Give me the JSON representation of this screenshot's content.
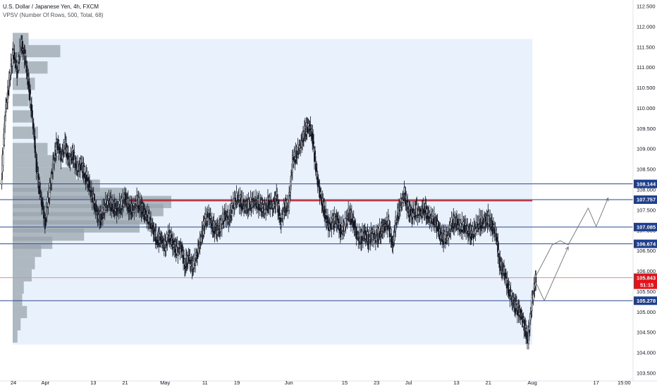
{
  "header": {
    "title": "U.S. Dollar / Japanese Yen, 4h, FXCM",
    "indicator": "VPSV (Number Of Rows, 500, Total, 68)"
  },
  "colors": {
    "candle": "#131722",
    "level_line": "#2a4a8c",
    "level_tag": "#1e3f8f",
    "red_line": "#d61f1f",
    "price_tag": "#e5121a",
    "volume_profile": "#9aa4ae",
    "value_area": "#e9f2fc",
    "projection": "#6b7280"
  },
  "chart_data": {
    "type": "candlestick",
    "symbol": "USDJPY",
    "timeframe": "4h",
    "ylim": [
      103.5,
      112.5
    ],
    "y_ticks": [
      "103.500",
      "104.000",
      "104.500",
      "105.000",
      "105.500",
      "106.000",
      "106.500",
      "107.000",
      "107.500",
      "108.000",
      "108.500",
      "109.000",
      "109.500",
      "110.000",
      "110.500",
      "111.000",
      "111.500",
      "112.000",
      "112.500"
    ],
    "x_ticks": [
      "24",
      "Apr",
      "13",
      "21",
      "May",
      "11",
      "19",
      "Jun",
      "15",
      "23",
      "Jul",
      "13",
      "21",
      "Aug",
      "17",
      "15:00"
    ],
    "x_domain": [
      "2020-03-21",
      "2020-08-25"
    ],
    "x_tick_dates": [
      "2020-03-24",
      "2020-04-01",
      "2020-04-13",
      "2020-04-21",
      "2020-05-01",
      "2020-05-11",
      "2020-05-19",
      "2020-06-01",
      "2020-06-15",
      "2020-06-23",
      "2020-07-01",
      "2020-07-13",
      "2020-07-21",
      "2020-08-01",
      "2020-08-17",
      "2020-08-24"
    ],
    "closes": [
      {
        "date": "2020-03-21",
        "close": 108.1
      },
      {
        "date": "2020-03-22",
        "close": 109.9
      },
      {
        "date": "2020-03-23",
        "close": 110.6
      },
      {
        "date": "2020-03-24",
        "close": 111.4
      },
      {
        "date": "2020-03-25",
        "close": 110.9
      },
      {
        "date": "2020-03-26",
        "close": 111.6
      },
      {
        "date": "2020-03-27",
        "close": 111.2
      },
      {
        "date": "2020-03-28",
        "close": 110.5
      },
      {
        "date": "2020-03-29",
        "close": 109.6
      },
      {
        "date": "2020-03-30",
        "close": 108.4
      },
      {
        "date": "2020-03-31",
        "close": 107.8
      },
      {
        "date": "2020-04-01",
        "close": 107.2
      },
      {
        "date": "2020-04-02",
        "close": 107.9
      },
      {
        "date": "2020-04-03",
        "close": 108.6
      },
      {
        "date": "2020-04-04",
        "close": 109.2
      },
      {
        "date": "2020-04-05",
        "close": 108.8
      },
      {
        "date": "2020-04-06",
        "close": 109.1
      },
      {
        "date": "2020-04-07",
        "close": 108.7
      },
      {
        "date": "2020-04-08",
        "close": 108.9
      },
      {
        "date": "2020-04-09",
        "close": 108.5
      },
      {
        "date": "2020-04-10",
        "close": 108.6
      },
      {
        "date": "2020-04-11",
        "close": 108.4
      },
      {
        "date": "2020-04-12",
        "close": 108.1
      },
      {
        "date": "2020-04-13",
        "close": 107.8
      },
      {
        "date": "2020-04-14",
        "close": 107.4
      },
      {
        "date": "2020-04-15",
        "close": 107.3
      },
      {
        "date": "2020-04-16",
        "close": 107.6
      },
      {
        "date": "2020-04-17",
        "close": 107.7
      },
      {
        "date": "2020-04-18",
        "close": 107.6
      },
      {
        "date": "2020-04-19",
        "close": 107.5
      },
      {
        "date": "2020-04-20",
        "close": 107.6
      },
      {
        "date": "2020-04-21",
        "close": 107.8
      },
      {
        "date": "2020-04-22",
        "close": 107.6
      },
      {
        "date": "2020-04-23",
        "close": 107.5
      },
      {
        "date": "2020-04-24",
        "close": 107.7
      },
      {
        "date": "2020-04-25",
        "close": 107.6
      },
      {
        "date": "2020-04-26",
        "close": 107.4
      },
      {
        "date": "2020-04-27",
        "close": 107.3
      },
      {
        "date": "2020-04-28",
        "close": 107.0
      },
      {
        "date": "2020-04-29",
        "close": 106.8
      },
      {
        "date": "2020-04-30",
        "close": 106.8
      },
      {
        "date": "2020-05-01",
        "close": 106.6
      },
      {
        "date": "2020-05-02",
        "close": 106.9
      },
      {
        "date": "2020-05-03",
        "close": 106.7
      },
      {
        "date": "2020-05-04",
        "close": 106.5
      },
      {
        "date": "2020-05-05",
        "close": 106.6
      },
      {
        "date": "2020-05-06",
        "close": 106.2
      },
      {
        "date": "2020-05-07",
        "close": 106.3
      },
      {
        "date": "2020-05-08",
        "close": 106.1
      },
      {
        "date": "2020-05-09",
        "close": 106.4
      },
      {
        "date": "2020-05-10",
        "close": 106.8
      },
      {
        "date": "2020-05-11",
        "close": 107.2
      },
      {
        "date": "2020-05-12",
        "close": 107.4
      },
      {
        "date": "2020-05-13",
        "close": 107.1
      },
      {
        "date": "2020-05-14",
        "close": 107.0
      },
      {
        "date": "2020-05-15",
        "close": 107.1
      },
      {
        "date": "2020-05-16",
        "close": 107.4
      },
      {
        "date": "2020-05-17",
        "close": 107.3
      },
      {
        "date": "2020-05-18",
        "close": 107.6
      },
      {
        "date": "2020-05-19",
        "close": 107.8
      },
      {
        "date": "2020-05-20",
        "close": 107.7
      },
      {
        "date": "2020-05-21",
        "close": 107.6
      },
      {
        "date": "2020-05-22",
        "close": 107.6
      },
      {
        "date": "2020-05-23",
        "close": 107.7
      },
      {
        "date": "2020-05-24",
        "close": 107.7
      },
      {
        "date": "2020-05-25",
        "close": 107.6
      },
      {
        "date": "2020-05-26",
        "close": 107.5
      },
      {
        "date": "2020-05-27",
        "close": 107.7
      },
      {
        "date": "2020-05-28",
        "close": 107.6
      },
      {
        "date": "2020-05-29",
        "close": 107.8
      },
      {
        "date": "2020-05-30",
        "close": 107.2
      },
      {
        "date": "2020-05-31",
        "close": 107.6
      },
      {
        "date": "2020-06-01",
        "close": 107.6
      },
      {
        "date": "2020-06-02",
        "close": 108.7
      },
      {
        "date": "2020-06-03",
        "close": 108.9
      },
      {
        "date": "2020-06-04",
        "close": 109.1
      },
      {
        "date": "2020-06-05",
        "close": 109.4
      },
      {
        "date": "2020-06-06",
        "close": 109.6
      },
      {
        "date": "2020-06-07",
        "close": 109.3
      },
      {
        "date": "2020-06-08",
        "close": 108.4
      },
      {
        "date": "2020-06-09",
        "close": 107.8
      },
      {
        "date": "2020-06-10",
        "close": 107.5
      },
      {
        "date": "2020-06-11",
        "close": 107.1
      },
      {
        "date": "2020-06-12",
        "close": 107.2
      },
      {
        "date": "2020-06-13",
        "close": 107.3
      },
      {
        "date": "2020-06-14",
        "close": 107.0
      },
      {
        "date": "2020-06-15",
        "close": 107.1
      },
      {
        "date": "2020-06-16",
        "close": 107.4
      },
      {
        "date": "2020-06-17",
        "close": 107.3
      },
      {
        "date": "2020-06-18",
        "close": 106.9
      },
      {
        "date": "2020-06-19",
        "close": 106.8
      },
      {
        "date": "2020-06-20",
        "close": 106.9
      },
      {
        "date": "2020-06-21",
        "close": 106.8
      },
      {
        "date": "2020-06-22",
        "close": 106.9
      },
      {
        "date": "2020-06-23",
        "close": 106.8
      },
      {
        "date": "2020-06-24",
        "close": 107.0
      },
      {
        "date": "2020-06-25",
        "close": 107.1
      },
      {
        "date": "2020-06-26",
        "close": 107.2
      },
      {
        "date": "2020-06-27",
        "close": 106.6
      },
      {
        "date": "2020-06-28",
        "close": 107.3
      },
      {
        "date": "2020-06-29",
        "close": 107.6
      },
      {
        "date": "2020-06-30",
        "close": 107.9
      },
      {
        "date": "2020-07-01",
        "close": 107.5
      },
      {
        "date": "2020-07-02",
        "close": 107.4
      },
      {
        "date": "2020-07-03",
        "close": 107.5
      },
      {
        "date": "2020-07-04",
        "close": 107.4
      },
      {
        "date": "2020-07-05",
        "close": 107.6
      },
      {
        "date": "2020-07-06",
        "close": 107.3
      },
      {
        "date": "2020-07-07",
        "close": 107.3
      },
      {
        "date": "2020-07-08",
        "close": 107.2
      },
      {
        "date": "2020-07-09",
        "close": 106.9
      },
      {
        "date": "2020-07-10",
        "close": 106.8
      },
      {
        "date": "2020-07-11",
        "close": 106.9
      },
      {
        "date": "2020-07-12",
        "close": 107.2
      },
      {
        "date": "2020-07-13",
        "close": 107.2
      },
      {
        "date": "2020-07-14",
        "close": 107.1
      },
      {
        "date": "2020-07-15",
        "close": 107.1
      },
      {
        "date": "2020-07-16",
        "close": 107.0
      },
      {
        "date": "2020-07-17",
        "close": 106.9
      },
      {
        "date": "2020-07-18",
        "close": 107.1
      },
      {
        "date": "2020-07-19",
        "close": 107.2
      },
      {
        "date": "2020-07-20",
        "close": 107.2
      },
      {
        "date": "2020-07-21",
        "close": 107.3
      },
      {
        "date": "2020-07-22",
        "close": 107.1
      },
      {
        "date": "2020-07-23",
        "close": 106.9
      },
      {
        "date": "2020-07-24",
        "close": 106.1
      },
      {
        "date": "2020-07-25",
        "close": 106.0
      },
      {
        "date": "2020-07-26",
        "close": 105.6
      },
      {
        "date": "2020-07-27",
        "close": 105.3
      },
      {
        "date": "2020-07-28",
        "close": 105.1
      },
      {
        "date": "2020-07-29",
        "close": 105.0
      },
      {
        "date": "2020-07-30",
        "close": 104.7
      },
      {
        "date": "2020-07-31",
        "close": 104.3
      },
      {
        "date": "2020-08-01",
        "close": 105.3
      },
      {
        "date": "2020-08-02",
        "close": 105.85
      }
    ],
    "levels": [
      {
        "price": 108.144,
        "label": "108.144"
      },
      {
        "price": 107.757,
        "label": "107.757"
      },
      {
        "price": 107.085,
        "label": "107.085"
      },
      {
        "price": 106.674,
        "label": "106.674"
      },
      {
        "price": 105.278,
        "label": "105.278"
      }
    ],
    "red_line": {
      "price": 107.73,
      "from": "2020-04-21",
      "to": "2020-08-01"
    },
    "current_price": {
      "price": 105.843,
      "label": "105.843",
      "countdown": "51:15"
    },
    "projection_path": [
      {
        "date": "2020-08-02",
        "price": 105.9
      },
      {
        "date": "2020-08-06",
        "price": 106.65
      },
      {
        "date": "2020-08-08",
        "price": 106.75
      },
      {
        "date": "2020-08-10",
        "price": 106.65
      },
      {
        "date": "2020-08-15",
        "price": 107.55
      },
      {
        "date": "2020-08-17",
        "price": 107.1
      },
      {
        "date": "2020-08-20",
        "price": 107.8
      }
    ],
    "projection_path_alt": [
      {
        "date": "2020-08-02",
        "price": 105.7
      },
      {
        "date": "2020-08-04",
        "price": 105.28
      },
      {
        "date": "2020-08-10",
        "price": 106.6
      }
    ],
    "volume_profile": [
      {
        "price": 111.7,
        "volume": 0.1
      },
      {
        "price": 111.4,
        "volume": 0.3
      },
      {
        "price": 111.0,
        "volume": 0.22
      },
      {
        "price": 110.6,
        "volume": 0.14
      },
      {
        "price": 110.2,
        "volume": 0.1
      },
      {
        "price": 109.8,
        "volume": 0.12
      },
      {
        "price": 109.4,
        "volume": 0.16
      },
      {
        "price": 109.0,
        "volume": 0.22
      },
      {
        "price": 108.7,
        "volume": 0.3
      },
      {
        "price": 108.4,
        "volume": 0.4
      },
      {
        "price": 108.1,
        "volume": 0.55
      },
      {
        "price": 107.9,
        "volume": 0.72
      },
      {
        "price": 107.7,
        "volume": 1.0
      },
      {
        "price": 107.5,
        "volume": 0.95
      },
      {
        "price": 107.3,
        "volume": 0.88
      },
      {
        "price": 107.1,
        "volume": 0.8
      },
      {
        "price": 106.9,
        "volume": 0.45
      },
      {
        "price": 106.7,
        "volume": 0.25
      },
      {
        "price": 106.5,
        "volume": 0.18
      },
      {
        "price": 106.2,
        "volume": 0.14
      },
      {
        "price": 105.9,
        "volume": 0.12
      },
      {
        "price": 105.6,
        "volume": 0.07
      },
      {
        "price": 105.3,
        "volume": 0.06
      },
      {
        "price": 105.0,
        "volume": 0.09
      },
      {
        "price": 104.7,
        "volume": 0.05
      },
      {
        "price": 104.4,
        "volume": 0.03
      }
    ],
    "value_area": {
      "from": "2020-03-21",
      "to": "2020-08-01",
      "ylim": [
        104.2,
        111.7
      ]
    },
    "grid": false
  }
}
